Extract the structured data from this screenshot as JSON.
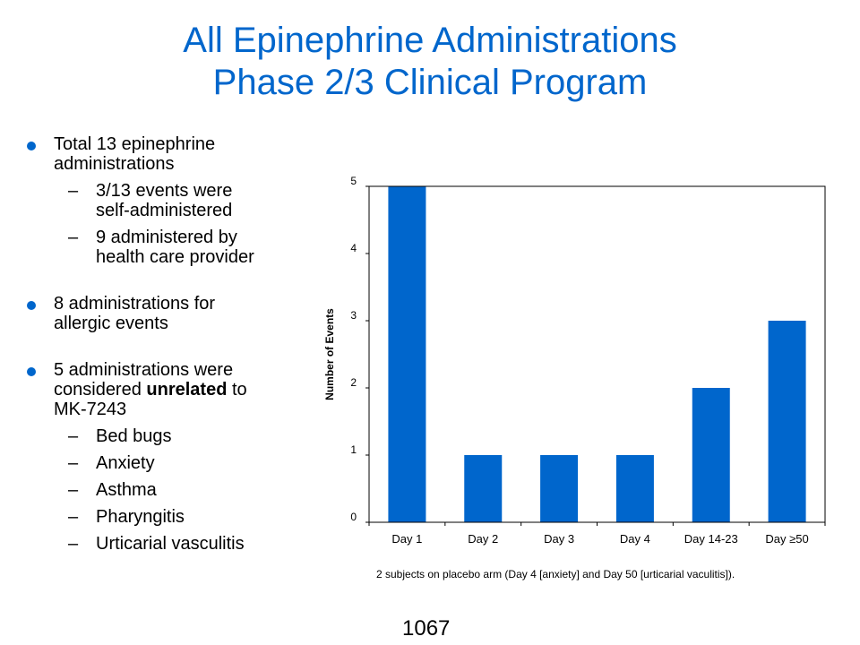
{
  "title": {
    "line1": "All Epinephrine Administrations",
    "line2": "Phase 2/3 Clinical Program"
  },
  "colors": {
    "accent": "#0066CC",
    "bar": "#0066CC"
  },
  "bullets": {
    "b1": {
      "line1": "Total 13 epinephrine",
      "line2": "administrations",
      "sub1_line1": "3/13 events were",
      "sub1_line2": "self-administered",
      "sub2_line1": "9 administered by",
      "sub2_line2": "health care provider"
    },
    "b2": {
      "line1": "8 administrations for",
      "line2": "allergic events"
    },
    "b3": {
      "line1": "5 administrations were",
      "line2_pre": "considered ",
      "line2_bold": "unrelated",
      "line2_post": " to",
      "line3": "MK-7243",
      "subs": [
        "Bed bugs",
        "Anxiety",
        "Asthma",
        "Pharyngitis",
        "Urticarial vasculitis"
      ]
    },
    "dash": "–"
  },
  "chart_data": {
    "type": "bar",
    "categories": [
      "Day 1",
      "Day 2",
      "Day 3",
      "Day 4",
      "Day 14-23",
      "Day ≥50"
    ],
    "values": [
      5,
      1,
      1,
      1,
      2,
      3
    ],
    "title": "",
    "xlabel": "",
    "ylabel": "Number of Events",
    "ylim": [
      0,
      5
    ],
    "yticks": [
      "0",
      "1",
      "2",
      "3",
      "4",
      "5"
    ],
    "grid": false
  },
  "footnote": "2 subjects on placebo arm (Day 4 [anxiety] and Day 50 [urticarial vaculitis]).",
  "page_number": "1067"
}
